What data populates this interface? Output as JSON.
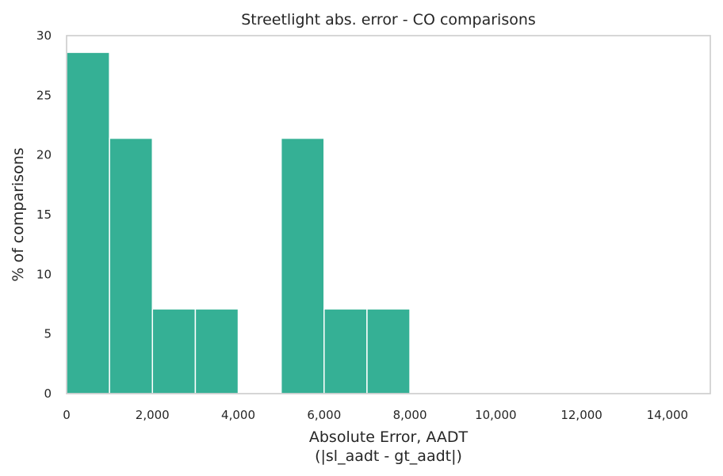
{
  "chart_data": {
    "type": "bar",
    "title": "Streetlight abs. error - CO comparisons",
    "xlabel": "Absolute Error, AADT",
    "xlabel_line2": "(|sl_aadt - gt_aadt|)",
    "ylabel": "% of comparisons",
    "xlim": [
      0,
      15000
    ],
    "ylim": [
      0,
      30
    ],
    "grid": false,
    "bin_width": 1000,
    "bins": [
      {
        "start": 0,
        "end": 1000,
        "value": 28.6
      },
      {
        "start": 1000,
        "end": 2000,
        "value": 21.4
      },
      {
        "start": 2000,
        "end": 3000,
        "value": 7.1
      },
      {
        "start": 3000,
        "end": 4000,
        "value": 7.1
      },
      {
        "start": 4000,
        "end": 5000,
        "value": 0
      },
      {
        "start": 5000,
        "end": 6000,
        "value": 21.4
      },
      {
        "start": 6000,
        "end": 7000,
        "value": 7.1
      },
      {
        "start": 7000,
        "end": 8000,
        "value": 7.1
      }
    ],
    "x_ticks": [
      {
        "value": 0,
        "label": "0"
      },
      {
        "value": 2000,
        "label": "2,000"
      },
      {
        "value": 4000,
        "label": "4,000"
      },
      {
        "value": 6000,
        "label": "6,000"
      },
      {
        "value": 8000,
        "label": "8,000"
      },
      {
        "value": 10000,
        "label": "10,000"
      },
      {
        "value": 12000,
        "label": "12,000"
      },
      {
        "value": 14000,
        "label": "14,000"
      }
    ],
    "y_ticks": [
      {
        "value": 0,
        "label": "0"
      },
      {
        "value": 5,
        "label": "5"
      },
      {
        "value": 10,
        "label": "10"
      },
      {
        "value": 15,
        "label": "15"
      },
      {
        "value": 20,
        "label": "20"
      },
      {
        "value": 25,
        "label": "25"
      },
      {
        "value": 30,
        "label": "30"
      }
    ],
    "colors": {
      "bar": "#35b095",
      "frame": "#cccccc",
      "text": "#262626"
    }
  }
}
